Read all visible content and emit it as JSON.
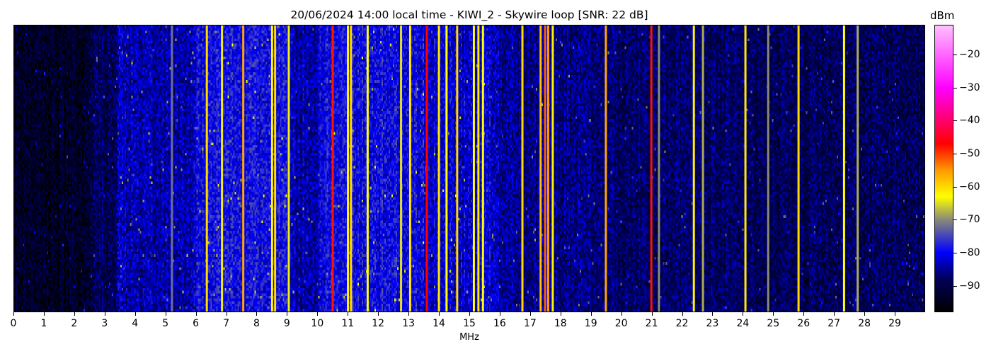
{
  "chart_data": {
    "type": "heatmap",
    "title": "20/06/2024 14:00 local time - KIWI_2 - Skywire loop [SNR: 22 dB]",
    "xlabel": "MHz",
    "xlim": [
      0,
      30
    ],
    "xticks": [
      "0",
      "1",
      "2",
      "3",
      "4",
      "5",
      "6",
      "7",
      "8",
      "9",
      "10",
      "11",
      "12",
      "13",
      "14",
      "15",
      "16",
      "17",
      "18",
      "19",
      "20",
      "21",
      "22",
      "23",
      "24",
      "25",
      "26",
      "27",
      "28",
      "29"
    ],
    "colorbar": {
      "label": "dBm",
      "range": [
        -98,
        -11
      ],
      "ticks": [
        "−20",
        "−30",
        "−40",
        "−50",
        "−60",
        "−70",
        "−80",
        "−90"
      ],
      "tick_values": [
        -20,
        -30,
        -40,
        -50,
        -60,
        -70,
        -80,
        -90
      ],
      "colormap_stops": [
        {
          "value": -98,
          "color": "#000000"
        },
        {
          "value": -88,
          "color": "#00005a"
        },
        {
          "value": -80,
          "color": "#0000ff"
        },
        {
          "value": -70,
          "color": "#8a8a78"
        },
        {
          "value": -63,
          "color": "#ffff00"
        },
        {
          "value": -55,
          "color": "#ff9900"
        },
        {
          "value": -47,
          "color": "#ff0000"
        },
        {
          "value": -30,
          "color": "#ff00ff"
        },
        {
          "value": -11,
          "color": "#ffc0ff"
        }
      ]
    },
    "noise_floor": [
      {
        "from_mhz": 0,
        "to_mhz": 2.5,
        "dbm": -94
      },
      {
        "from_mhz": 2.5,
        "to_mhz": 3.4,
        "dbm": -89
      },
      {
        "from_mhz": 3.4,
        "to_mhz": 6.0,
        "dbm": -84
      },
      {
        "from_mhz": 6.0,
        "to_mhz": 9.0,
        "dbm": -80
      },
      {
        "from_mhz": 9.0,
        "to_mhz": 10.0,
        "dbm": -84
      },
      {
        "from_mhz": 10.0,
        "to_mhz": 13.5,
        "dbm": -80
      },
      {
        "from_mhz": 13.5,
        "to_mhz": 16.0,
        "dbm": -82
      },
      {
        "from_mhz": 16.0,
        "to_mhz": 19.0,
        "dbm": -86
      },
      {
        "from_mhz": 19.0,
        "to_mhz": 24.0,
        "dbm": -88
      },
      {
        "from_mhz": 24.0,
        "to_mhz": 30.0,
        "dbm": -89
      }
    ],
    "signals": [
      {
        "mhz": 5.2,
        "dbm": -72
      },
      {
        "mhz": 6.35,
        "dbm": -60
      },
      {
        "mhz": 6.85,
        "dbm": -64
      },
      {
        "mhz": 7.55,
        "dbm": -56
      },
      {
        "mhz": 8.5,
        "dbm": -62
      },
      {
        "mhz": 8.6,
        "dbm": -60
      },
      {
        "mhz": 9.05,
        "dbm": -64
      },
      {
        "mhz": 10.5,
        "dbm": -48
      },
      {
        "mhz": 11.0,
        "dbm": -62
      },
      {
        "mhz": 11.1,
        "dbm": -60
      },
      {
        "mhz": 11.65,
        "dbm": -63
      },
      {
        "mhz": 12.75,
        "dbm": -65
      },
      {
        "mhz": 13.05,
        "dbm": -61
      },
      {
        "mhz": 13.6,
        "dbm": -47
      },
      {
        "mhz": 14.0,
        "dbm": -61
      },
      {
        "mhz": 14.25,
        "dbm": -63
      },
      {
        "mhz": 14.6,
        "dbm": -60
      },
      {
        "mhz": 15.15,
        "dbm": -63
      },
      {
        "mhz": 15.3,
        "dbm": -61
      },
      {
        "mhz": 15.45,
        "dbm": -63
      },
      {
        "mhz": 16.75,
        "dbm": -60
      },
      {
        "mhz": 17.35,
        "dbm": -58
      },
      {
        "mhz": 17.5,
        "dbm": -52
      },
      {
        "mhz": 17.6,
        "dbm": -55
      },
      {
        "mhz": 17.75,
        "dbm": -62
      },
      {
        "mhz": 19.5,
        "dbm": -56
      },
      {
        "mhz": 21.0,
        "dbm": -48
      },
      {
        "mhz": 21.25,
        "dbm": -70
      },
      {
        "mhz": 22.4,
        "dbm": -62
      },
      {
        "mhz": 22.7,
        "dbm": -68
      },
      {
        "mhz": 24.1,
        "dbm": -61
      },
      {
        "mhz": 24.85,
        "dbm": -70
      },
      {
        "mhz": 25.85,
        "dbm": -60
      },
      {
        "mhz": 27.35,
        "dbm": -63
      },
      {
        "mhz": 27.8,
        "dbm": -68
      }
    ]
  }
}
